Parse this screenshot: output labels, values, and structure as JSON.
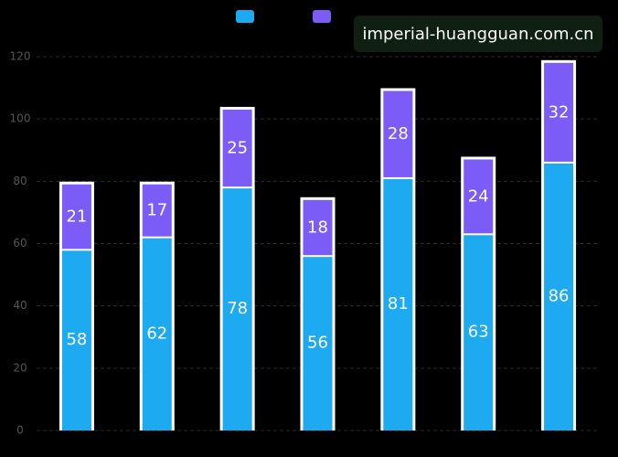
{
  "chart_data": {
    "type": "stacked-bar",
    "categories": [
      null,
      null,
      null,
      null,
      null,
      null,
      null
    ],
    "series": [
      {
        "color": "#1eaaf1",
        "values": [
          58,
          62,
          78,
          56,
          81,
          63,
          86
        ]
      },
      {
        "color": "#7b5cf6",
        "values": [
          21,
          17,
          25,
          18,
          28,
          24,
          32
        ]
      }
    ],
    "ylim": [
      0,
      120
    ],
    "yticks": [
      0,
      20,
      40,
      60,
      80,
      100,
      120
    ],
    "grid": true,
    "watermark": "imperial-huangguan.com.cn"
  }
}
